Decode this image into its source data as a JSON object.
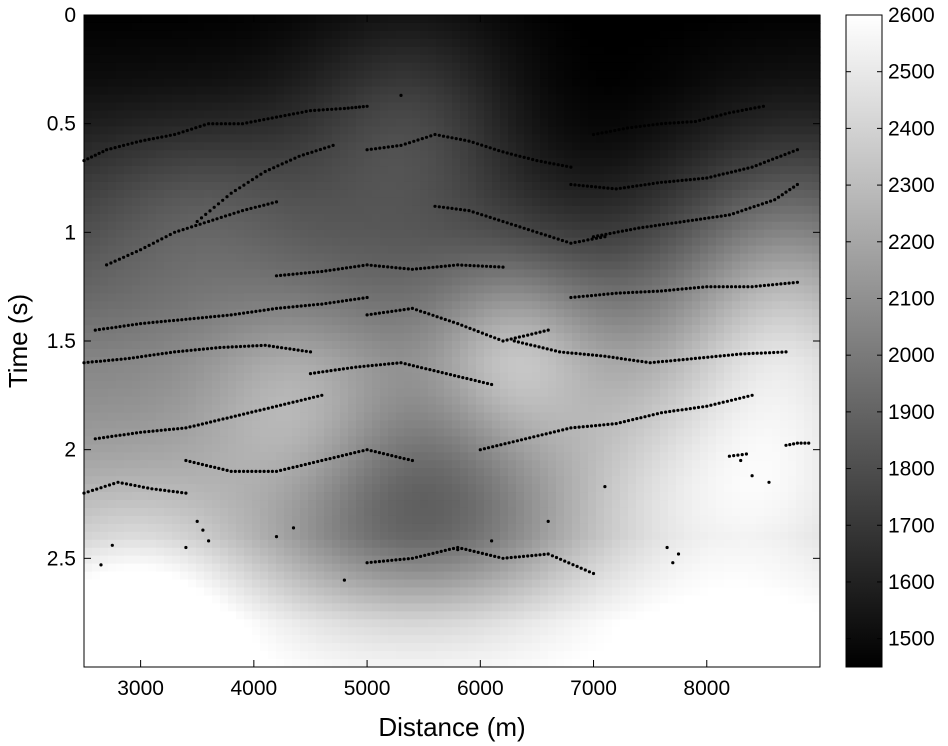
{
  "chart_data": {
    "type": "heatmap",
    "title": "",
    "xlabel": "Distance (m)",
    "ylabel": "Time (s)",
    "xlim": [
      2500,
      9000
    ],
    "ylim": [
      0,
      3.0
    ],
    "y_reversed": true,
    "x_ticks": [
      3000,
      4000,
      5000,
      6000,
      7000,
      8000
    ],
    "y_ticks": [
      0,
      0.5,
      1,
      1.5,
      2,
      2.5
    ],
    "y_tick_labels": [
      "0",
      "0.5",
      "1",
      "1.5",
      "2",
      "2.5"
    ],
    "colorbar": {
      "colormap": "gray",
      "range": [
        1450,
        2600
      ],
      "ticks": [
        1500,
        1600,
        1700,
        1800,
        1900,
        2000,
        2100,
        2200,
        2300,
        2400,
        2500,
        2600
      ]
    },
    "background_profile": {
      "times": [
        0,
        0.3,
        0.5,
        0.8,
        1.0,
        1.3,
        1.6,
        2.0,
        2.4,
        2.8,
        3.0
      ],
      "values": [
        1450,
        1500,
        1560,
        1680,
        1760,
        1900,
        2050,
        2150,
        2250,
        2550,
        2600
      ]
    },
    "field_features": [
      {
        "x": 5400,
        "t": 0.5,
        "dv": 250,
        "sx": 700,
        "st": 0.35
      },
      {
        "x": 3500,
        "t": 0.9,
        "dv": 150,
        "sx": 700,
        "st": 0.3
      },
      {
        "x": 8700,
        "t": 1.4,
        "dv": 400,
        "sx": 700,
        "st": 0.5
      },
      {
        "x": 6300,
        "t": 1.55,
        "dv": 300,
        "sx": 500,
        "st": 0.3
      },
      {
        "x": 4400,
        "t": 1.85,
        "dv": 250,
        "sx": 600,
        "st": 0.35
      },
      {
        "x": 5500,
        "t": 2.3,
        "dv": -400,
        "sx": 1000,
        "st": 0.35
      },
      {
        "x": 8000,
        "t": 2.2,
        "dv": 300,
        "sx": 1200,
        "st": 0.4
      },
      {
        "x": 3000,
        "t": 2.6,
        "dv": 250,
        "sx": 700,
        "st": 0.3
      },
      {
        "x": 6800,
        "t": 0.7,
        "dv": -120,
        "sx": 900,
        "st": 0.35
      }
    ],
    "picks": [
      {
        "x": [
          2500,
          2700,
          3000,
          3300,
          3600,
          3900,
          4200,
          4500,
          4800,
          5000
        ],
        "t": [
          0.67,
          0.62,
          0.58,
          0.55,
          0.5,
          0.5,
          0.47,
          0.44,
          0.43,
          0.42
        ]
      },
      {
        "x": [
          2700,
          3000,
          3300,
          3600,
          3900,
          4200
        ],
        "t": [
          1.15,
          1.08,
          1.0,
          0.95,
          0.9,
          0.86
        ]
      },
      {
        "x": [
          3500,
          3800,
          4100,
          4400,
          4700
        ],
        "t": [
          0.95,
          0.82,
          0.72,
          0.65,
          0.6
        ]
      },
      {
        "x": [
          5000,
          5300,
          5600,
          5900,
          6200,
          6500,
          6800
        ],
        "t": [
          0.62,
          0.6,
          0.55,
          0.58,
          0.63,
          0.67,
          0.7
        ]
      },
      {
        "x": [
          7000,
          7300,
          7600,
          7900,
          8200,
          8500
        ],
        "t": [
          0.55,
          0.52,
          0.5,
          0.49,
          0.45,
          0.42
        ]
      },
      {
        "x": [
          6800,
          7200,
          7600,
          8000,
          8400,
          8800
        ],
        "t": [
          0.78,
          0.8,
          0.77,
          0.75,
          0.7,
          0.62
        ]
      },
      {
        "x": [
          7000,
          7400,
          7800,
          8200,
          8600,
          8800
        ],
        "t": [
          1.02,
          0.98,
          0.95,
          0.92,
          0.85,
          0.78
        ]
      },
      {
        "x": [
          5600,
          5900,
          6200,
          6500,
          6800,
          7100
        ],
        "t": [
          0.88,
          0.9,
          0.95,
          1.0,
          1.05,
          1.02
        ]
      },
      {
        "x": [
          4200,
          4600,
          5000,
          5400,
          5800,
          6200
        ],
        "t": [
          1.2,
          1.18,
          1.15,
          1.17,
          1.15,
          1.16
        ]
      },
      {
        "x": [
          2600,
          3000,
          3400,
          3800,
          4200,
          4600,
          5000
        ],
        "t": [
          1.45,
          1.42,
          1.4,
          1.38,
          1.35,
          1.33,
          1.3
        ]
      },
      {
        "x": [
          5000,
          5400,
          5800,
          6200,
          6600
        ],
        "t": [
          1.38,
          1.35,
          1.42,
          1.5,
          1.45
        ]
      },
      {
        "x": [
          6800,
          7200,
          7600,
          8000,
          8400,
          8800
        ],
        "t": [
          1.3,
          1.28,
          1.27,
          1.25,
          1.25,
          1.23
        ]
      },
      {
        "x": [
          2500,
          2900,
          3300,
          3700,
          4100,
          4500
        ],
        "t": [
          1.6,
          1.58,
          1.55,
          1.53,
          1.52,
          1.55
        ]
      },
      {
        "x": [
          4500,
          4900,
          5300,
          5700,
          6100
        ],
        "t": [
          1.65,
          1.62,
          1.6,
          1.65,
          1.7
        ]
      },
      {
        "x": [
          6300,
          6700,
          7100,
          7500,
          7900,
          8300,
          8700
        ],
        "t": [
          1.5,
          1.55,
          1.57,
          1.6,
          1.58,
          1.56,
          1.55
        ]
      },
      {
        "x": [
          2600,
          3000,
          3400,
          3800,
          4200,
          4600
        ],
        "t": [
          1.95,
          1.92,
          1.9,
          1.85,
          1.8,
          1.75
        ]
      },
      {
        "x": [
          6000,
          6400,
          6800,
          7200,
          7600,
          8000,
          8400
        ],
        "t": [
          2.0,
          1.95,
          1.9,
          1.88,
          1.83,
          1.8,
          1.75
        ]
      },
      {
        "x": [
          3400,
          3800,
          4200,
          4600,
          5000,
          5400
        ],
        "t": [
          2.05,
          2.1,
          2.1,
          2.05,
          2.0,
          2.05
        ]
      },
      {
        "x": [
          2500,
          2800,
          3100,
          3400
        ],
        "t": [
          2.2,
          2.15,
          2.18,
          2.2
        ]
      },
      {
        "x": [
          5000,
          5400,
          5800,
          6200,
          6600,
          7000
        ],
        "t": [
          2.52,
          2.5,
          2.45,
          2.5,
          2.48,
          2.57
        ]
      },
      {
        "x": [
          8700,
          8800,
          8900
        ],
        "t": [
          1.98,
          1.97,
          1.97
        ]
      },
      {
        "x": [
          8200,
          8350
        ],
        "t": [
          2.03,
          2.02
        ]
      }
    ],
    "scatter_points": [
      {
        "x": 2650,
        "t": 2.53
      },
      {
        "x": 2750,
        "t": 2.44
      },
      {
        "x": 3400,
        "t": 2.45
      },
      {
        "x": 3500,
        "t": 2.33
      },
      {
        "x": 3550,
        "t": 2.37
      },
      {
        "x": 3600,
        "t": 2.42
      },
      {
        "x": 4200,
        "t": 2.4
      },
      {
        "x": 4350,
        "t": 2.36
      },
      {
        "x": 4800,
        "t": 2.6
      },
      {
        "x": 5300,
        "t": 0.37
      },
      {
        "x": 5800,
        "t": 2.46
      },
      {
        "x": 6100,
        "t": 2.42
      },
      {
        "x": 6600,
        "t": 2.33
      },
      {
        "x": 7100,
        "t": 2.17
      },
      {
        "x": 7650,
        "t": 2.45
      },
      {
        "x": 7700,
        "t": 2.52
      },
      {
        "x": 7750,
        "t": 2.48
      },
      {
        "x": 8300,
        "t": 2.05
      },
      {
        "x": 8400,
        "t": 2.12
      },
      {
        "x": 8550,
        "t": 2.15
      }
    ]
  }
}
